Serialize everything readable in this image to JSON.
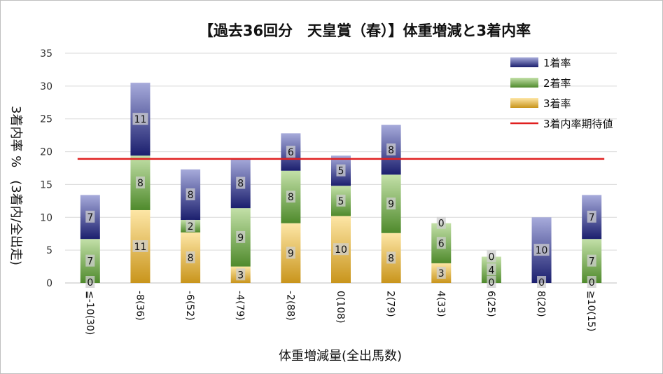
{
  "chart_data": {
    "type": "bar",
    "stacked": true,
    "title": "【過去36回分　天皇賞（春）】体重増減と3着内率",
    "xlabel": "体重増減量(全出馬数)",
    "ylabel": "3着内率 %　(3着内/全出走)",
    "ylim": [
      0,
      35
    ],
    "yticks": [
      0,
      5,
      10,
      15,
      20,
      25,
      30,
      35
    ],
    "grid": true,
    "legend_position": "top-right",
    "categories": [
      "≦-10(30)",
      "-8(36)",
      "-6(52)",
      "-4(79)",
      "-2(88)",
      "0(108)",
      "2(79)",
      "4(33)",
      "6(25)",
      "8(20)",
      "≧10(15)"
    ],
    "series": [
      {
        "name": "3着率",
        "color": "#e6b84a",
        "values": [
          0,
          11.1,
          7.7,
          2.5,
          9.1,
          10.2,
          7.6,
          3.0,
          0,
          0,
          0
        ],
        "labels": [
          "0",
          "11",
          "8",
          "3",
          "9",
          "10",
          "8",
          "3",
          "0",
          "0",
          "0"
        ]
      },
      {
        "name": "2着率",
        "color": "#6ea84a",
        "values": [
          6.7,
          8.3,
          1.9,
          8.9,
          8.0,
          4.6,
          8.9,
          6.1,
          4.0,
          0,
          6.7
        ],
        "labels": [
          "7",
          "8",
          "2",
          "9",
          "8",
          "5",
          "9",
          "6",
          "4",
          "",
          "7"
        ]
      },
      {
        "name": "1着率",
        "color": "#3a3f8f",
        "values": [
          6.7,
          11.1,
          7.7,
          7.6,
          5.7,
          4.6,
          7.6,
          0,
          0,
          10.0,
          6.7
        ],
        "labels": [
          "7",
          "11",
          "8",
          "8",
          "6",
          "5",
          "8",
          "0",
          "0",
          "10",
          "7"
        ]
      }
    ],
    "expected_line": {
      "name": "3着内率期待値",
      "value": 18.9,
      "color": "#e02020"
    }
  }
}
